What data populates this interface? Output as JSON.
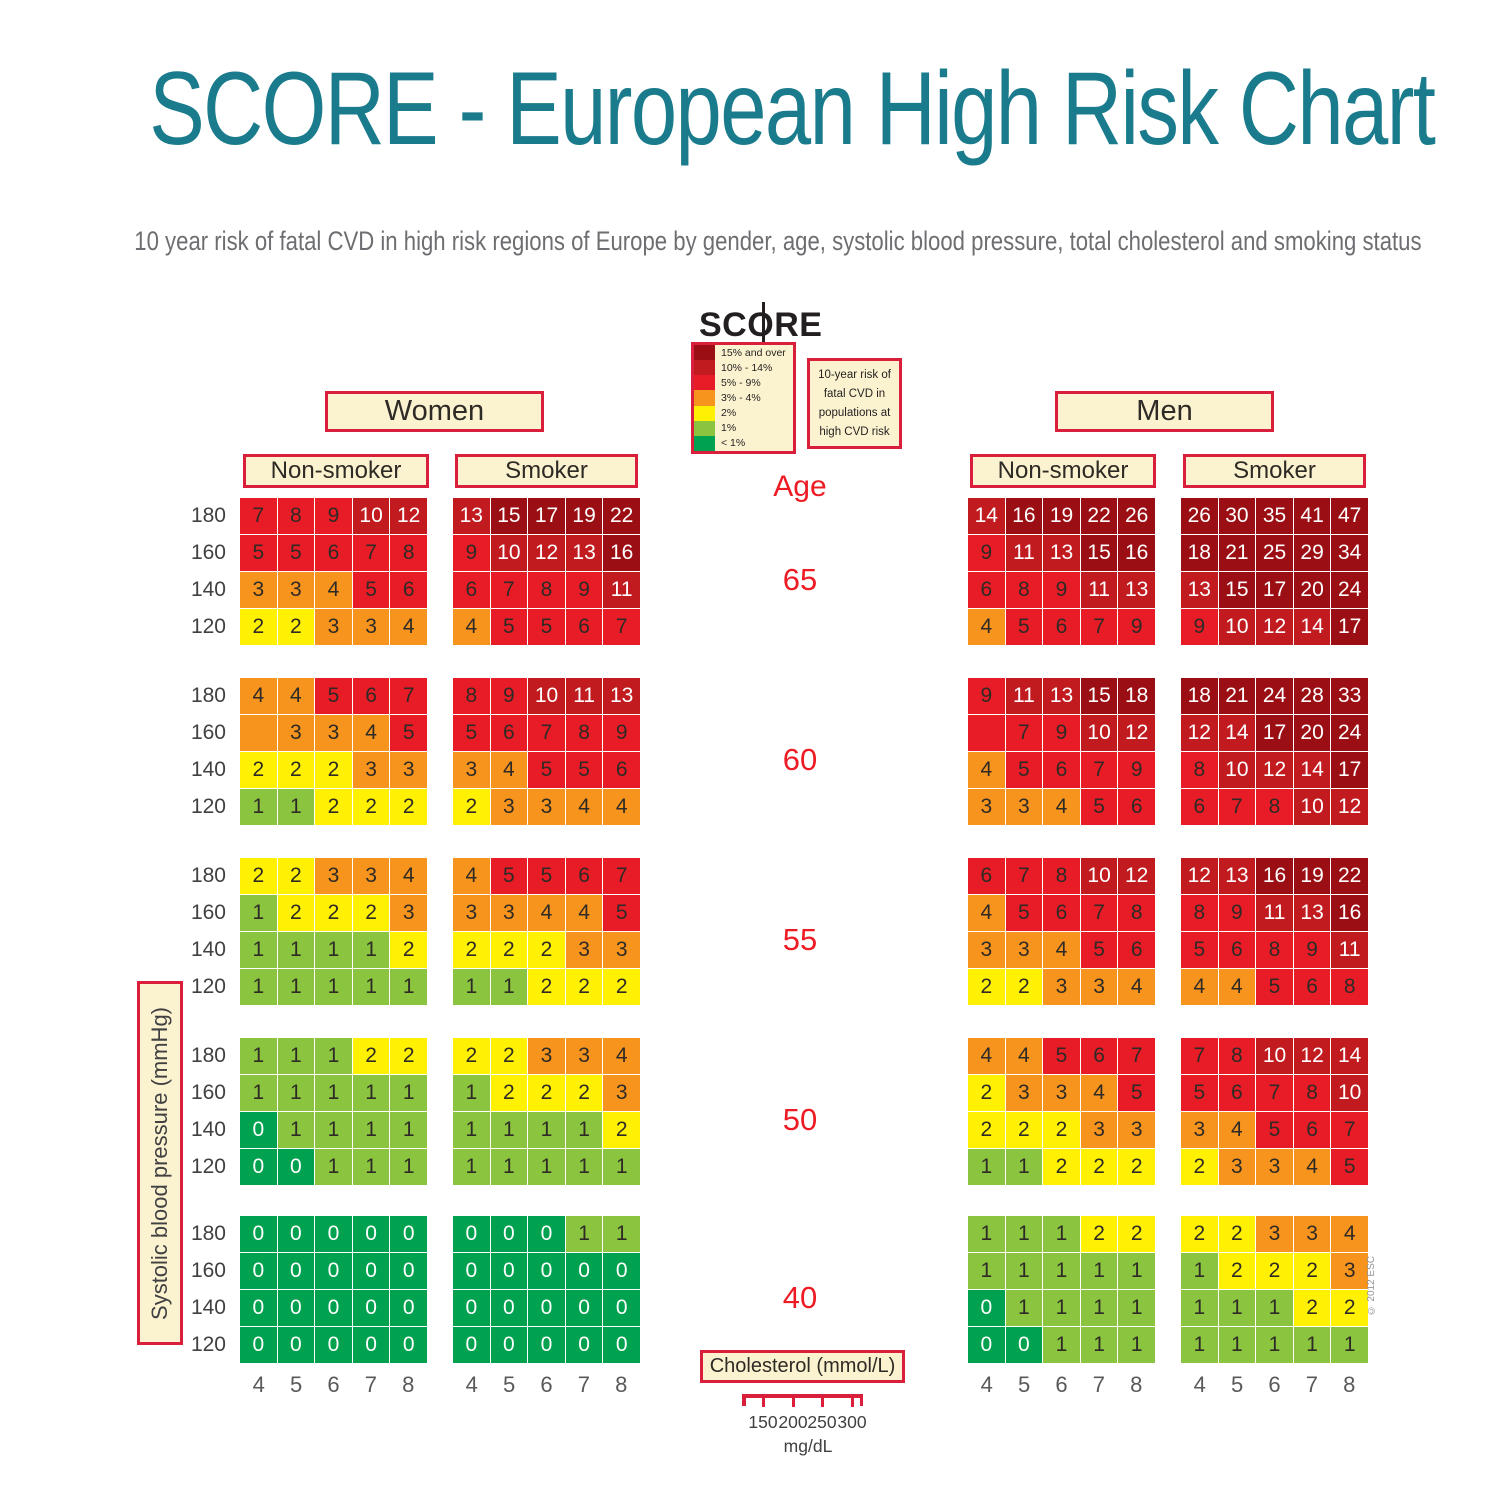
{
  "title": "SCORE - European High Risk Chart",
  "subtitle": "10 year risk of fatal CVD in high risk regions of Europe by gender, age, systolic blood pressure, total cholesterol and smoking status",
  "logo": {
    "left": "SC",
    "o": "O",
    "right": "RE"
  },
  "legend": {
    "items": [
      {
        "label": "15% and over",
        "band": "15+"
      },
      {
        "label": "10% - 14%",
        "band": "10-14"
      },
      {
        "label": "5% - 9%",
        "band": "5-9"
      },
      {
        "label": "3% - 4%",
        "band": "3-4"
      },
      {
        "label": "2%",
        "band": "2"
      },
      {
        "label": "1%",
        "band": "1"
      },
      {
        "label": "< 1%",
        "band": "<1"
      }
    ]
  },
  "info_box_lines": [
    "10-year risk of",
    "fatal CVD in",
    "populations at",
    "high CVD risk"
  ],
  "groups": {
    "women": "Women",
    "men": "Men"
  },
  "smoking_headers": {
    "non_smoker": "Non-smoker",
    "smoker": "Smoker"
  },
  "age_label": "Age",
  "ages": [
    "65",
    "60",
    "55",
    "50",
    "40"
  ],
  "sbp_label": "Systolic blood pressure (mmHg)",
  "sbp_rows": [
    "180",
    "160",
    "140",
    "120"
  ],
  "cholesterol_label": "Cholesterol (mmol/L)",
  "cholesterol_cols": [
    "4",
    "5",
    "6",
    "7",
    "8"
  ],
  "mgdl_ticks": [
    "150",
    "200",
    "250",
    "300"
  ],
  "mgdl_label": "mg/dL",
  "copyright": "© 2012 ESC",
  "colors": {
    "title_teal": "#1a7b8c",
    "subtitle_gray": "#6d6e71",
    "accent_red": "#ed1c24",
    "box_border": "#d91f3b",
    "box_bg": "#fbf3cf",
    "cell_text_dark": "#2e2a25",
    "cell_text_light": "#ffffff",
    "bands": {
      "15+": "#9b0f14",
      "10-14": "#c11b20",
      "5-9": "#e81c26",
      "3-4": "#f7941e",
      "2": "#fff101",
      "1": "#8bc540",
      "<1": "#00a24f"
    }
  },
  "chart_data": {
    "type": "heatmap",
    "title": "SCORE - European High Risk Chart",
    "subtitle": "10 year risk of fatal CVD in high risk regions of Europe by gender, age, systolic blood pressure, total cholesterol and smoking status",
    "x_label": "Cholesterol (mmol/L)",
    "x_categories": [
      4,
      5,
      6,
      7,
      8
    ],
    "y_label": "Systolic blood pressure (mmHg)",
    "y_categories": [
      180,
      160,
      140,
      120
    ],
    "ages": [
      65,
      60,
      55,
      50,
      40
    ],
    "risk_band_thresholds": [
      "<1%",
      "1%",
      "2%",
      "3-4%",
      "5-9%",
      "10-14%",
      "15% and over"
    ],
    "panels": [
      {
        "gender": "Women",
        "smoking": "Non-smoker",
        "age": 65,
        "rows": [
          [
            7,
            8,
            9,
            10,
            12
          ],
          [
            5,
            5,
            6,
            7,
            8
          ],
          [
            3,
            3,
            4,
            5,
            6
          ],
          [
            2,
            2,
            3,
            3,
            4
          ]
        ]
      },
      {
        "gender": "Women",
        "smoking": "Non-smoker",
        "age": 60,
        "rows": [
          [
            4,
            4,
            5,
            6,
            7
          ],
          [
            null,
            3,
            3,
            4,
            5
          ],
          [
            2,
            2,
            2,
            3,
            3
          ],
          [
            1,
            1,
            2,
            2,
            2
          ]
        ],
        "band_override": {
          "1,0": "3-4"
        }
      },
      {
        "gender": "Women",
        "smoking": "Non-smoker",
        "age": 55,
        "rows": [
          [
            2,
            2,
            3,
            3,
            4
          ],
          [
            1,
            2,
            2,
            2,
            3
          ],
          [
            1,
            1,
            1,
            1,
            2
          ],
          [
            1,
            1,
            1,
            1,
            1
          ]
        ]
      },
      {
        "gender": "Women",
        "smoking": "Non-smoker",
        "age": 50,
        "rows": [
          [
            1,
            1,
            1,
            2,
            2
          ],
          [
            1,
            1,
            1,
            1,
            1
          ],
          [
            0,
            1,
            1,
            1,
            1
          ],
          [
            0,
            0,
            1,
            1,
            1
          ]
        ]
      },
      {
        "gender": "Women",
        "smoking": "Non-smoker",
        "age": 40,
        "rows": [
          [
            0,
            0,
            0,
            0,
            0
          ],
          [
            0,
            0,
            0,
            0,
            0
          ],
          [
            0,
            0,
            0,
            0,
            0
          ],
          [
            0,
            0,
            0,
            0,
            0
          ]
        ]
      },
      {
        "gender": "Women",
        "smoking": "Smoker",
        "age": 65,
        "rows": [
          [
            13,
            15,
            17,
            19,
            22
          ],
          [
            9,
            10,
            12,
            13,
            16
          ],
          [
            6,
            7,
            8,
            9,
            11
          ],
          [
            4,
            5,
            5,
            6,
            7
          ]
        ]
      },
      {
        "gender": "Women",
        "smoking": "Smoker",
        "age": 60,
        "rows": [
          [
            8,
            9,
            10,
            11,
            13
          ],
          [
            5,
            6,
            7,
            8,
            9
          ],
          [
            3,
            4,
            5,
            5,
            6
          ],
          [
            2,
            3,
            3,
            4,
            4
          ]
        ]
      },
      {
        "gender": "Women",
        "smoking": "Smoker",
        "age": 55,
        "rows": [
          [
            4,
            5,
            5,
            6,
            7
          ],
          [
            3,
            3,
            4,
            4,
            5
          ],
          [
            2,
            2,
            2,
            3,
            3
          ],
          [
            1,
            1,
            2,
            2,
            2
          ]
        ]
      },
      {
        "gender": "Women",
        "smoking": "Smoker",
        "age": 50,
        "rows": [
          [
            2,
            2,
            3,
            3,
            4
          ],
          [
            1,
            2,
            2,
            2,
            3
          ],
          [
            1,
            1,
            1,
            1,
            2
          ],
          [
            1,
            1,
            1,
            1,
            1
          ]
        ]
      },
      {
        "gender": "Women",
        "smoking": "Smoker",
        "age": 40,
        "rows": [
          [
            0,
            0,
            0,
            1,
            1
          ],
          [
            0,
            0,
            0,
            0,
            0
          ],
          [
            0,
            0,
            0,
            0,
            0
          ],
          [
            0,
            0,
            0,
            0,
            0
          ]
        ]
      },
      {
        "gender": "Men",
        "smoking": "Non-smoker",
        "age": 65,
        "rows": [
          [
            14,
            16,
            19,
            22,
            26
          ],
          [
            9,
            11,
            13,
            15,
            16
          ],
          [
            6,
            8,
            9,
            11,
            13
          ],
          [
            4,
            5,
            6,
            7,
            9
          ]
        ]
      },
      {
        "gender": "Men",
        "smoking": "Non-smoker",
        "age": 60,
        "rows": [
          [
            9,
            11,
            13,
            15,
            18
          ],
          [
            null,
            7,
            9,
            10,
            12
          ],
          [
            4,
            5,
            6,
            7,
            9
          ],
          [
            3,
            3,
            4,
            5,
            6
          ]
        ],
        "band_override": {
          "1,0": "5-9"
        }
      },
      {
        "gender": "Men",
        "smoking": "Non-smoker",
        "age": 55,
        "rows": [
          [
            6,
            7,
            8,
            10,
            12
          ],
          [
            4,
            5,
            6,
            7,
            8
          ],
          [
            3,
            3,
            4,
            5,
            6
          ],
          [
            2,
            2,
            3,
            3,
            4
          ]
        ]
      },
      {
        "gender": "Men",
        "smoking": "Non-smoker",
        "age": 50,
        "rows": [
          [
            4,
            4,
            5,
            6,
            7
          ],
          [
            2,
            3,
            3,
            4,
            5
          ],
          [
            2,
            2,
            2,
            3,
            3
          ],
          [
            1,
            1,
            2,
            2,
            2
          ]
        ]
      },
      {
        "gender": "Men",
        "smoking": "Non-smoker",
        "age": 40,
        "rows": [
          [
            1,
            1,
            1,
            2,
            2
          ],
          [
            1,
            1,
            1,
            1,
            1
          ],
          [
            0,
            1,
            1,
            1,
            1
          ],
          [
            0,
            0,
            1,
            1,
            1
          ]
        ]
      },
      {
        "gender": "Men",
        "smoking": "Smoker",
        "age": 65,
        "rows": [
          [
            26,
            30,
            35,
            41,
            47
          ],
          [
            18,
            21,
            25,
            29,
            34
          ],
          [
            13,
            15,
            17,
            20,
            24
          ],
          [
            9,
            10,
            12,
            14,
            17
          ]
        ]
      },
      {
        "gender": "Men",
        "smoking": "Smoker",
        "age": 60,
        "rows": [
          [
            18,
            21,
            24,
            28,
            33
          ],
          [
            12,
            14,
            17,
            20,
            24
          ],
          [
            8,
            10,
            12,
            14,
            17
          ],
          [
            6,
            7,
            8,
            10,
            12
          ]
        ]
      },
      {
        "gender": "Men",
        "smoking": "Smoker",
        "age": 55,
        "rows": [
          [
            12,
            13,
            16,
            19,
            22
          ],
          [
            8,
            9,
            11,
            13,
            16
          ],
          [
            5,
            6,
            8,
            9,
            11
          ],
          [
            4,
            4,
            5,
            6,
            8
          ]
        ]
      },
      {
        "gender": "Men",
        "smoking": "Smoker",
        "age": 50,
        "rows": [
          [
            7,
            8,
            10,
            12,
            14
          ],
          [
            5,
            6,
            7,
            8,
            10
          ],
          [
            3,
            4,
            5,
            6,
            7
          ],
          [
            2,
            3,
            3,
            4,
            5
          ]
        ]
      },
      {
        "gender": "Men",
        "smoking": "Smoker",
        "age": 40,
        "rows": [
          [
            2,
            2,
            3,
            3,
            4
          ],
          [
            1,
            2,
            2,
            2,
            3
          ],
          [
            1,
            1,
            1,
            2,
            2
          ],
          [
            1,
            1,
            1,
            1,
            1
          ]
        ]
      }
    ]
  }
}
